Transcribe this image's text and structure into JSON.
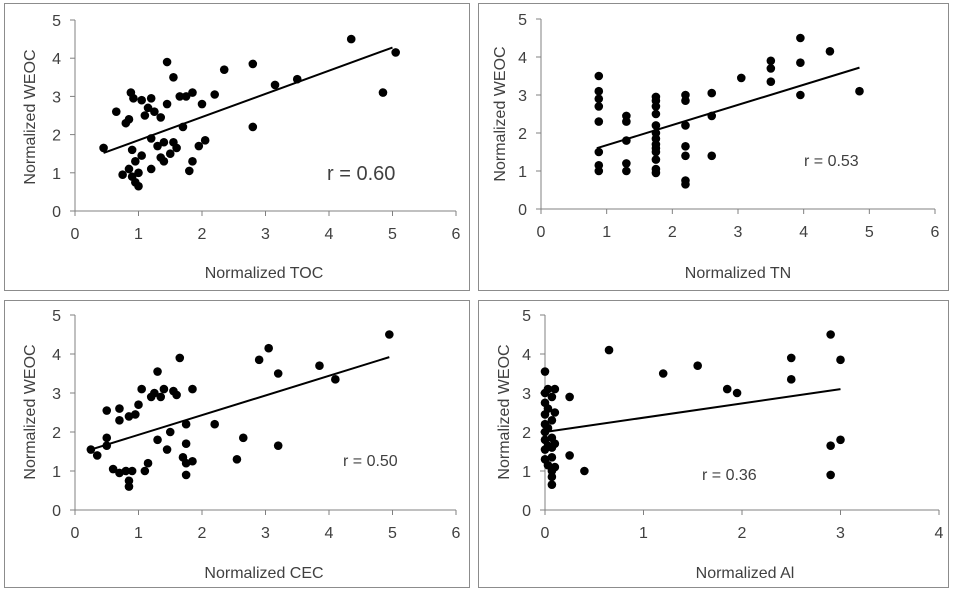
{
  "chart_data": [
    {
      "type": "scatter",
      "xlabel": "Normalized TOC",
      "ylabel": "Normalized WEOC",
      "xlim": [
        0,
        6
      ],
      "ylim": [
        0,
        5
      ],
      "xticks": [
        "0",
        "1",
        "2",
        "3",
        "4",
        "5",
        "6"
      ],
      "yticks": [
        "0",
        "1",
        "2",
        "3",
        "4",
        "5"
      ],
      "annotation": "r = 0.60",
      "trendline": {
        "x": [
          0.45,
          5.0
        ],
        "y": [
          1.52,
          4.28
        ]
      },
      "points": [
        [
          0.45,
          1.65
        ],
        [
          0.65,
          2.6
        ],
        [
          0.75,
          0.95
        ],
        [
          0.8,
          2.3
        ],
        [
          0.85,
          1.1
        ],
        [
          0.85,
          2.4
        ],
        [
          0.88,
          3.1
        ],
        [
          0.9,
          0.9
        ],
        [
          0.9,
          1.6
        ],
        [
          0.92,
          2.95
        ],
        [
          0.95,
          1.3
        ],
        [
          0.95,
          0.75
        ],
        [
          1.0,
          1.0
        ],
        [
          1.0,
          0.65
        ],
        [
          1.05,
          1.45
        ],
        [
          1.05,
          2.9
        ],
        [
          1.1,
          2.5
        ],
        [
          1.15,
          2.7
        ],
        [
          1.2,
          1.1
        ],
        [
          1.2,
          1.9
        ],
        [
          1.2,
          2.95
        ],
        [
          1.25,
          2.6
        ],
        [
          1.3,
          1.7
        ],
        [
          1.35,
          1.4
        ],
        [
          1.35,
          2.45
        ],
        [
          1.4,
          1.8
        ],
        [
          1.4,
          1.3
        ],
        [
          1.45,
          2.8
        ],
        [
          1.45,
          3.9
        ],
        [
          1.5,
          1.5
        ],
        [
          1.55,
          1.8
        ],
        [
          1.55,
          3.5
        ],
        [
          1.6,
          1.65
        ],
        [
          1.65,
          3.0
        ],
        [
          1.7,
          2.2
        ],
        [
          1.75,
          3.0
        ],
        [
          1.8,
          1.05
        ],
        [
          1.85,
          1.3
        ],
        [
          1.85,
          3.1
        ],
        [
          1.95,
          1.7
        ],
        [
          2.0,
          2.8
        ],
        [
          2.05,
          1.85
        ],
        [
          2.2,
          3.05
        ],
        [
          2.35,
          3.7
        ],
        [
          2.8,
          2.2
        ],
        [
          2.8,
          3.85
        ],
        [
          3.15,
          3.3
        ],
        [
          3.5,
          3.45
        ],
        [
          4.35,
          4.5
        ],
        [
          4.85,
          3.1
        ],
        [
          5.05,
          4.15
        ]
      ]
    },
    {
      "type": "scatter",
      "xlabel": "Normalized TN",
      "ylabel": "Normalized WEOC",
      "xlim": [
        0,
        6
      ],
      "ylim": [
        0,
        5
      ],
      "xticks": [
        "0",
        "1",
        "2",
        "3",
        "4",
        "5",
        "6"
      ],
      "yticks": [
        "0",
        "1",
        "2",
        "3",
        "4",
        "5"
      ],
      "annotation": "r = 0.53",
      "trendline": {
        "x": [
          0.85,
          4.85
        ],
        "y": [
          1.6,
          3.72
        ]
      },
      "points": [
        [
          0.88,
          1.0
        ],
        [
          0.88,
          1.15
        ],
        [
          0.88,
          1.5
        ],
        [
          0.88,
          2.3
        ],
        [
          0.88,
          2.7
        ],
        [
          0.88,
          2.9
        ],
        [
          0.88,
          3.1
        ],
        [
          0.88,
          3.5
        ],
        [
          1.3,
          1.0
        ],
        [
          1.3,
          1.2
        ],
        [
          1.3,
          1.8
        ],
        [
          1.3,
          2.3
        ],
        [
          1.3,
          2.45
        ],
        [
          1.75,
          0.95
        ],
        [
          1.75,
          1.05
        ],
        [
          1.75,
          1.3
        ],
        [
          1.75,
          1.5
        ],
        [
          1.75,
          1.6
        ],
        [
          1.75,
          1.7
        ],
        [
          1.75,
          1.85
        ],
        [
          1.75,
          2.0
        ],
        [
          1.75,
          2.2
        ],
        [
          1.75,
          2.5
        ],
        [
          1.75,
          2.7
        ],
        [
          1.75,
          2.85
        ],
        [
          1.75,
          2.95
        ],
        [
          2.2,
          0.65
        ],
        [
          2.2,
          0.75
        ],
        [
          2.2,
          1.4
        ],
        [
          2.2,
          1.65
        ],
        [
          2.2,
          2.2
        ],
        [
          2.2,
          2.85
        ],
        [
          2.2,
          3.0
        ],
        [
          2.6,
          1.4
        ],
        [
          2.6,
          2.45
        ],
        [
          2.6,
          3.05
        ],
        [
          3.05,
          3.45
        ],
        [
          3.5,
          3.35
        ],
        [
          3.5,
          3.7
        ],
        [
          3.5,
          3.9
        ],
        [
          3.95,
          3.0
        ],
        [
          3.95,
          3.85
        ],
        [
          3.95,
          4.5
        ],
        [
          4.4,
          4.15
        ],
        [
          4.85,
          3.1
        ]
      ]
    },
    {
      "type": "scatter",
      "xlabel": "Normalized CEC",
      "ylabel": "Normalized WEOC",
      "xlim": [
        0,
        6
      ],
      "ylim": [
        0,
        5
      ],
      "xticks": [
        "0",
        "1",
        "2",
        "3",
        "4",
        "5",
        "6"
      ],
      "yticks": [
        "0",
        "1",
        "2",
        "3",
        "4",
        "5"
      ],
      "annotation": "r = 0.50",
      "trendline": {
        "x": [
          0.25,
          4.95
        ],
        "y": [
          1.55,
          3.92
        ]
      },
      "points": [
        [
          0.25,
          1.55
        ],
        [
          0.35,
          1.4
        ],
        [
          0.5,
          1.65
        ],
        [
          0.5,
          1.85
        ],
        [
          0.5,
          2.55
        ],
        [
          0.6,
          1.05
        ],
        [
          0.7,
          0.95
        ],
        [
          0.7,
          2.3
        ],
        [
          0.7,
          2.6
        ],
        [
          0.8,
          1.0
        ],
        [
          0.85,
          0.75
        ],
        [
          0.85,
          0.6
        ],
        [
          0.85,
          2.4
        ],
        [
          0.9,
          1.0
        ],
        [
          0.95,
          2.45
        ],
        [
          1.0,
          2.7
        ],
        [
          1.05,
          3.1
        ],
        [
          1.1,
          1.0
        ],
        [
          1.15,
          1.2
        ],
        [
          1.2,
          2.9
        ],
        [
          1.25,
          3.0
        ],
        [
          1.3,
          3.55
        ],
        [
          1.3,
          1.8
        ],
        [
          1.35,
          2.9
        ],
        [
          1.4,
          3.1
        ],
        [
          1.45,
          1.55
        ],
        [
          1.5,
          2.0
        ],
        [
          1.55,
          3.05
        ],
        [
          1.6,
          2.95
        ],
        [
          1.65,
          3.9
        ],
        [
          1.7,
          1.35
        ],
        [
          1.75,
          2.2
        ],
        [
          1.75,
          1.7
        ],
        [
          1.75,
          1.2
        ],
        [
          1.75,
          0.9
        ],
        [
          1.85,
          1.25
        ],
        [
          1.85,
          3.1
        ],
        [
          2.2,
          2.2
        ],
        [
          2.55,
          1.3
        ],
        [
          2.65,
          1.85
        ],
        [
          2.9,
          3.85
        ],
        [
          3.05,
          4.15
        ],
        [
          3.2,
          1.65
        ],
        [
          3.2,
          3.5
        ],
        [
          3.85,
          3.7
        ],
        [
          4.1,
          3.35
        ],
        [
          4.95,
          4.5
        ]
      ]
    },
    {
      "type": "scatter",
      "xlabel": "Normalized Al",
      "ylabel": "Normalized WEOC",
      "xlim": [
        0,
        4
      ],
      "ylim": [
        0,
        5
      ],
      "xticks": [
        "0",
        "1",
        "2",
        "3",
        "4"
      ],
      "yticks": [
        "0",
        "1",
        "2",
        "3",
        "4",
        "5"
      ],
      "annotation": "r = 0.36",
      "trendline": {
        "x": [
          0.0,
          3.0
        ],
        "y": [
          2.0,
          3.1
        ]
      },
      "points": [
        [
          0.0,
          1.3
        ],
        [
          0.0,
          1.55
        ],
        [
          0.0,
          1.8
        ],
        [
          0.0,
          2.0
        ],
        [
          0.0,
          2.2
        ],
        [
          0.0,
          2.45
        ],
        [
          0.0,
          2.75
        ],
        [
          0.0,
          3.0
        ],
        [
          0.0,
          3.55
        ],
        [
          0.03,
          1.15
        ],
        [
          0.03,
          1.65
        ],
        [
          0.03,
          2.1
        ],
        [
          0.03,
          2.6
        ],
        [
          0.03,
          3.1
        ],
        [
          0.07,
          0.65
        ],
        [
          0.07,
          0.85
        ],
        [
          0.07,
          1.0
        ],
        [
          0.07,
          1.35
        ],
        [
          0.07,
          1.6
        ],
        [
          0.07,
          1.85
        ],
        [
          0.07,
          2.3
        ],
        [
          0.07,
          2.9
        ],
        [
          0.1,
          1.1
        ],
        [
          0.1,
          1.7
        ],
        [
          0.1,
          2.5
        ],
        [
          0.1,
          3.1
        ],
        [
          0.25,
          1.4
        ],
        [
          0.25,
          2.9
        ],
        [
          0.4,
          1.0
        ],
        [
          0.65,
          4.1
        ],
        [
          1.2,
          3.5
        ],
        [
          1.55,
          3.7
        ],
        [
          1.85,
          3.1
        ],
        [
          1.95,
          3.0
        ],
        [
          2.5,
          3.35
        ],
        [
          2.5,
          3.9
        ],
        [
          2.9,
          1.65
        ],
        [
          2.9,
          0.9
        ],
        [
          2.9,
          4.5
        ],
        [
          3.0,
          1.8
        ],
        [
          3.0,
          3.85
        ]
      ]
    }
  ]
}
